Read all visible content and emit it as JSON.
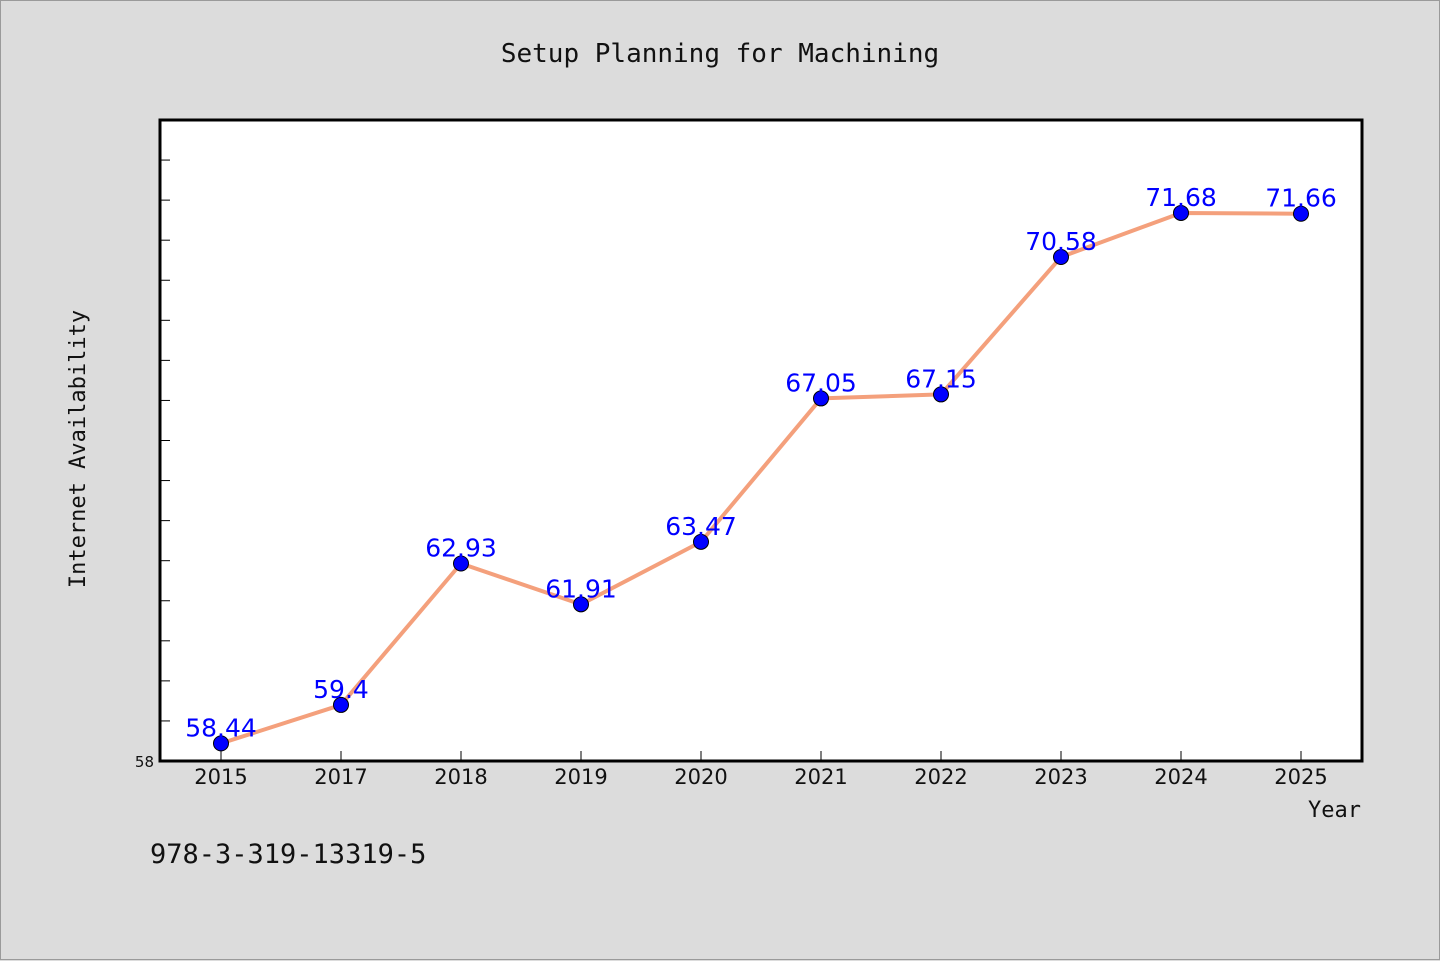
{
  "footer_text": "978-3-319-13319-5",
  "chart_data": {
    "type": "line",
    "title": "Setup Planning for Machining",
    "xlabel": "Year",
    "ylabel": "Internet Availability",
    "categories": [
      "2015",
      "2017",
      "2018",
      "2019",
      "2020",
      "2021",
      "2022",
      "2023",
      "2024",
      "2025"
    ],
    "series": [
      {
        "values": [
          58.44,
          59.4,
          62.93,
          61.91,
          63.47,
          67.05,
          67.15,
          70.58,
          71.68,
          71.66
        ],
        "data_labels": [
          "58.44",
          "59.4",
          "62.93",
          "61.91",
          "63.47",
          "67.05",
          "67.15",
          "70.58",
          "71.68",
          "71.66"
        ],
        "line_color": "#f4a07c",
        "marker_color": "#0000ff"
      }
    ],
    "ylim": [
      58,
      74
    ],
    "ytick_labels": [
      "58"
    ],
    "grid": false,
    "legend": "none",
    "colors": {
      "background": "#dcdcdc",
      "plot_background": "#ffffff",
      "axis": "#000000"
    }
  }
}
